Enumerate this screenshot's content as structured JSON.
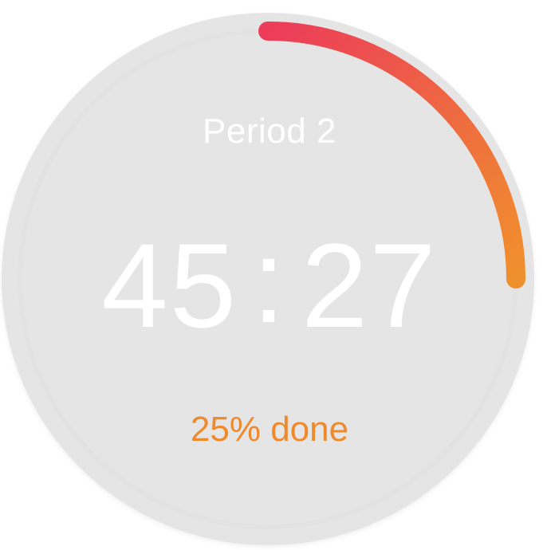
{
  "timer": {
    "period_label": "Period 2",
    "minutes": "45",
    "separator": ":",
    "seconds": "27",
    "progress_text": "25% done",
    "progress_fraction": 0.25
  },
  "colors": {
    "face": "#e6e5e6",
    "face_rim": "#dcdbdc",
    "text_primary": "#ffffff",
    "progress_start": "#ec3c5a",
    "progress_end": "#f0902c",
    "progress_label": "#ef8a2c"
  }
}
